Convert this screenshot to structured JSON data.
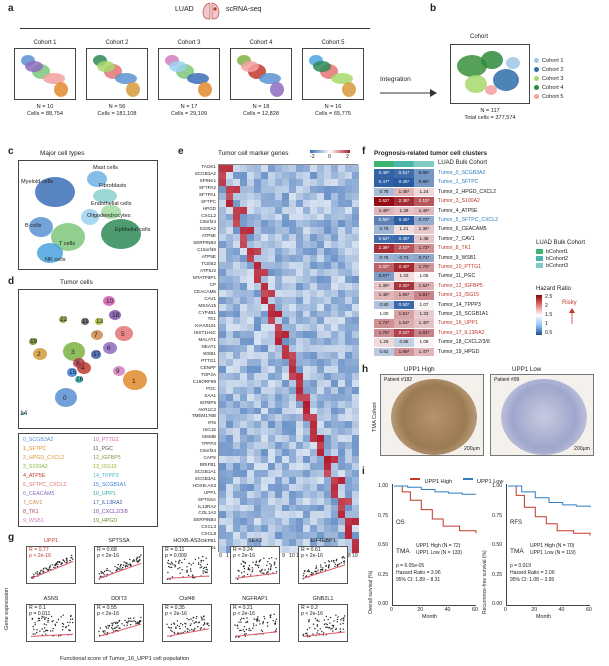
{
  "panels": {
    "a": "a",
    "b": "b",
    "c": "c",
    "d": "d",
    "e": "e",
    "f": "f",
    "g": "g",
    "h": "h",
    "i": "i"
  },
  "a": {
    "luad": "LUAD",
    "scrna": "scRNA-seq",
    "integration": "Integration",
    "cohorts": [
      {
        "title": "Cohort 1",
        "n": "N = 10",
        "cells": "Cells = 88,754"
      },
      {
        "title": "Cohort 2",
        "n": "N = 56",
        "cells": "Cells = 181,108"
      },
      {
        "title": "Cohort 3",
        "n": "N = 17",
        "cells": "Cells = 29,109"
      },
      {
        "title": "Cohort 4",
        "n": "N = 18",
        "cells": "Cells = 12,828"
      },
      {
        "title": "Cohort 5",
        "n": "N = 16",
        "cells": "Cells = 65,775"
      }
    ]
  },
  "b": {
    "title": "Cohort",
    "n": "N = 117",
    "cells": "Total cells = 377,574",
    "legend": [
      {
        "label": "Cohort 1",
        "color": "#9ec8e8"
      },
      {
        "label": "Cohort 2",
        "color": "#2f6fa8"
      },
      {
        "label": "Cohort 3",
        "color": "#a7d96a"
      },
      {
        "label": "Cohort 4",
        "color": "#2e8b3c"
      },
      {
        "label": "Cohort 5",
        "color": "#f3a0a0"
      }
    ]
  },
  "c": {
    "title": "Major cell types",
    "labels": [
      "Myeloid cells",
      "Mast cells",
      "Fibroblasts",
      "Endothelial cells",
      "B cells",
      "Oligodendrocytes",
      "Epithelial cells",
      "T cells",
      "NK cells"
    ]
  },
  "d": {
    "title": "Tumor cells",
    "clusters": [
      {
        "id": "0_SCGB3A2",
        "color": "#5b8fd1"
      },
      {
        "id": "1_SFTPC",
        "color": "#e08a2c"
      },
      {
        "id": "2_HPGD_CXCL2",
        "color": "#d59a3a"
      },
      {
        "id": "3_S100A2",
        "color": "#7cb342"
      },
      {
        "id": "4_ATP5E",
        "color": "#c0392b"
      },
      {
        "id": "5_SFTPC_CXCL2",
        "color": "#e57373"
      },
      {
        "id": "6_CEACAM5",
        "color": "#8e6bbf"
      },
      {
        "id": "7_CAV1",
        "color": "#c98b4a"
      },
      {
        "id": "8_TK1",
        "color": "#b03a48"
      },
      {
        "id": "9_WSB1",
        "color": "#d17dbf"
      },
      {
        "id": "10_PTTG1",
        "color": "#d45bb0"
      },
      {
        "id": "11_PGC",
        "color": "#555555"
      },
      {
        "id": "12_IGFBP5",
        "color": "#7a9a3a"
      },
      {
        "id": "13_ISG15",
        "color": "#a0b82a"
      },
      {
        "id": "14_TPPP3",
        "color": "#4fb0c6"
      },
      {
        "id": "15_SCGB1A1",
        "color": "#3a7bd5"
      },
      {
        "id": "16_UPP1",
        "color": "#2aa8a8"
      },
      {
        "id": "17_IL13RA2",
        "color": "#3a5ca8"
      },
      {
        "id": "18_CXCL2/3/8",
        "color": "#7b4fa8"
      },
      {
        "id": "19_HPGD",
        "color": "#6a8a2a"
      }
    ]
  },
  "e": {
    "title": "Tumor cell marker genes",
    "scale": [
      "-2",
      "0",
      "2"
    ],
    "genes": [
      "TAOK1",
      "SCGB3A2",
      "SPINK1",
      "SFTPA2",
      "SFTPA1",
      "SFTPC",
      "HPGD",
      "CXCL2",
      "C9orf24",
      "S100A2",
      "ATP5E",
      "SERPINB3",
      "C15orf48",
      "ATP5E",
      "TCEB2",
      "ATP5J2",
      "MTATP6P1",
      "CP",
      "CEACAM5",
      "CAV1",
      "MS4A15",
      "CYP4B1",
      "TK1",
      "KIAA0101",
      "HIST1H4C",
      "MALAT1",
      "NEAT1",
      "WSB1",
      "PTTG1",
      "CENPF",
      "TOP2A",
      "C16ORF89",
      "PGC",
      "SAA1",
      "IGFBP5",
      "AKR1C2",
      "TMEM176B",
      "IFI6",
      "ISG15",
      "MSMB",
      "TPPP3",
      "C9orf24",
      "CAPS",
      "BRIFB1",
      "SCGB1A1",
      "SCGB3A1",
      "HOXB-AS3",
      "UPP1",
      "SPTSSA",
      "IL13RA2",
      "COL1A2",
      "SERPINB4",
      "CXCL3",
      "CXCL8",
      "DEFB1",
      "NQO1"
    ],
    "xticks": [
      "0",
      "1",
      "2",
      "3",
      "4",
      "5",
      "6",
      "7",
      "8",
      "9",
      "10",
      "11",
      "12",
      "13",
      "14",
      "15",
      "16",
      "17",
      "18",
      "19"
    ]
  },
  "f": {
    "title": "Prognosis-related tumor cell clusters",
    "header": "LUAD Bulk Cohort",
    "legend_title": "LUAD Bulk Cohort",
    "legend": [
      {
        "label": "bCohort1",
        "color": "#3cb371"
      },
      {
        "label": "bCohort2",
        "color": "#4db6ac"
      },
      {
        "label": "bCohort3",
        "color": "#80cbc4"
      }
    ],
    "hr_title": "Hazard Ratio",
    "hr_ticks": [
      "2.5",
      "2",
      "1.5",
      "1",
      "0.5"
    ],
    "risky": "Risky",
    "rows": [
      {
        "label": "Tumor_0_SCGB3A2",
        "vals": [
          "0.48*",
          "0.51*",
          "0.65*"
        ],
        "lc": "#2f7fc1"
      },
      {
        "label": "Tumor_1_SFTPC",
        "vals": [
          "0.47*",
          "0.45*",
          "0.65*"
        ],
        "lc": "#2f7fc1"
      },
      {
        "label": "Tumor_2_HPGD_CXCL2",
        "vals": [
          "0.78",
          "1.48*",
          "1.24"
        ],
        "lc": "#222222"
      },
      {
        "label": "Tumor_3_S100A2",
        "vals": [
          "2.62*",
          "2.38*",
          "2.10*"
        ],
        "lc": "#c0392b"
      },
      {
        "label": "Tumor_4_ATP5E",
        "vals": [
          "1.49*",
          "1.39",
          "1.46*"
        ],
        "lc": "#222222"
      },
      {
        "label": "Tumor_5_SFTPC_CXCL2",
        "vals": [
          "0.58*",
          "0.46*",
          "0.72*"
        ],
        "lc": "#2f7fc1"
      },
      {
        "label": "Tumor_6_CEACAM5",
        "vals": [
          "0.76",
          "1.21",
          "1.36*"
        ],
        "lc": "#222222"
      },
      {
        "label": "Tumor_7_CAV1",
        "vals": [
          "0.52*",
          "0.49*",
          "1.38"
        ],
        "lc": "#222222"
      },
      {
        "label": "Tumor_8_TK1",
        "vals": [
          "2.36*",
          "2.10*",
          "1.72*"
        ],
        "lc": "#c0392b"
      },
      {
        "label": "Tumor_9_WSB1",
        "vals": [
          "0.75",
          "0.73",
          "0.71*"
        ],
        "lc": "#222222"
      },
      {
        "label": "Tumor_10_PTTG1",
        "vals": [
          "2.02*",
          "2.40*",
          "1.70*"
        ],
        "lc": "#c0392b"
      },
      {
        "label": "Tumor_11_PGC",
        "vals": [
          "0.67*",
          "1.23",
          "1.05"
        ],
        "lc": "#222222"
      },
      {
        "label": "Tumor_12_IGFBP5",
        "vals": [
          "1.39*",
          "2.32*",
          "1.52*"
        ],
        "lc": "#c0392b"
      },
      {
        "label": "Tumor_13_ISG15",
        "vals": [
          "1.48*",
          "1.56*",
          "1.81*"
        ],
        "lc": "#c0392b"
      },
      {
        "label": "Tumor_14_TPPP3",
        "vals": [
          "0.80",
          "0.50*",
          "1.07"
        ],
        "lc": "#222222"
      },
      {
        "label": "Tumor_15_SCGB1A1",
        "vals": [
          "1.00",
          "1.61*",
          "1.33"
        ],
        "lc": "#222222"
      },
      {
        "label": "Tumor_16_UPP1",
        "vals": [
          "1.72*",
          "1.53*",
          "1.40*"
        ],
        "lc": "#c0392b"
      },
      {
        "label": "Tumor_17_IL13RA2",
        "vals": [
          "1.76*",
          "2.22*",
          "1.81*"
        ],
        "lc": "#c0392b"
      },
      {
        "label": "Tumor_18_CXCL2/3/8",
        "vals": [
          "1.25",
          "0.85",
          "1.08"
        ],
        "lc": "#222222"
      },
      {
        "label": "Tumor_19_HPGD",
        "vals": [
          "0.82",
          "1.69*",
          "1.47*"
        ],
        "lc": "#222222"
      }
    ]
  },
  "g": {
    "ylabel": "Gene expression",
    "xlabel": "Functional score of Tumor_16_UPP1 cell population",
    "panels": [
      {
        "gene": "UPP1",
        "stat": "R = 0.77",
        "p": "p < 2e-16"
      },
      {
        "gene": "SPTSSA",
        "stat": "R = 0.68",
        "p": "p < 2e-16"
      },
      {
        "gene": "HOXB-AS3",
        "stat": "R = 0.11",
        "p": "p = 0.009"
      },
      {
        "gene": "SEX3",
        "stat": "R = 0.24",
        "p": "p < 2e-16"
      },
      {
        "gene": "EIF4EBP1",
        "stat": "R = 0.61",
        "p": "p < 2e-16"
      },
      {
        "gene": "ASNS",
        "stat": "R = 0.1",
        "p": "p = 0.011"
      },
      {
        "gene": "DDIT3",
        "stat": "R = 0.55",
        "p": "p < 2e-16"
      },
      {
        "gene": "Ctsf48",
        "stat": "R = 0.35",
        "p": "p < 2e-16"
      },
      {
        "gene": "NGFRAP1",
        "stat": "R = 0.21",
        "p": "p < 2e-16"
      },
      {
        "gene": "GNB2L1",
        "stat": "R = 0.2",
        "p": "p < 2e-16"
      }
    ],
    "xticks": [
      "0.2",
      "0.4",
      "0.6",
      "0.8",
      "1.0"
    ]
  },
  "h": {
    "cohort": "TMA Cohort",
    "high_title": "UPP1 High",
    "low_title": "UPP1 Low",
    "high_patient": "Patient #182",
    "low_patient": "Patient #99",
    "scale": "200μm"
  },
  "i": {
    "legend_high": "UPP1 High",
    "legend_low": "UPP1 Low",
    "os": {
      "tag": "OS",
      "tma": "TMA",
      "high": "UPP1 High (N = 72)",
      "low": "UPP1 Low (N = 133)",
      "p": "p = 6.05e-05",
      "hr": "Hazard Ratio = 3.96",
      "ci": "95% CI: 1.89 – 8.31",
      "ylabel": "Overall survival (%)",
      "xlabel": "Month",
      "yticks": [
        "1.00",
        "0.75",
        "0.50",
        "0.25",
        "0.00"
      ],
      "xticks": [
        "0",
        "20",
        "40",
        "60"
      ]
    },
    "rfs": {
      "tag": "RFS",
      "tma": "TMA",
      "high": "UPP1 High (N = 70)",
      "low": "UPP1 Low (N = 119)",
      "p": "p = 0.019",
      "hr": "Hazard Ratio = 2.06",
      "ci": "95% CI: 1.08 – 3.95",
      "ylabel": "Recurrence-free survival (%)",
      "xlabel": "Month",
      "yticks": [
        "1.00",
        "0.75",
        "0.50",
        "0.25",
        "0.00"
      ],
      "xticks": [
        "0",
        "20",
        "40",
        "60"
      ]
    }
  }
}
